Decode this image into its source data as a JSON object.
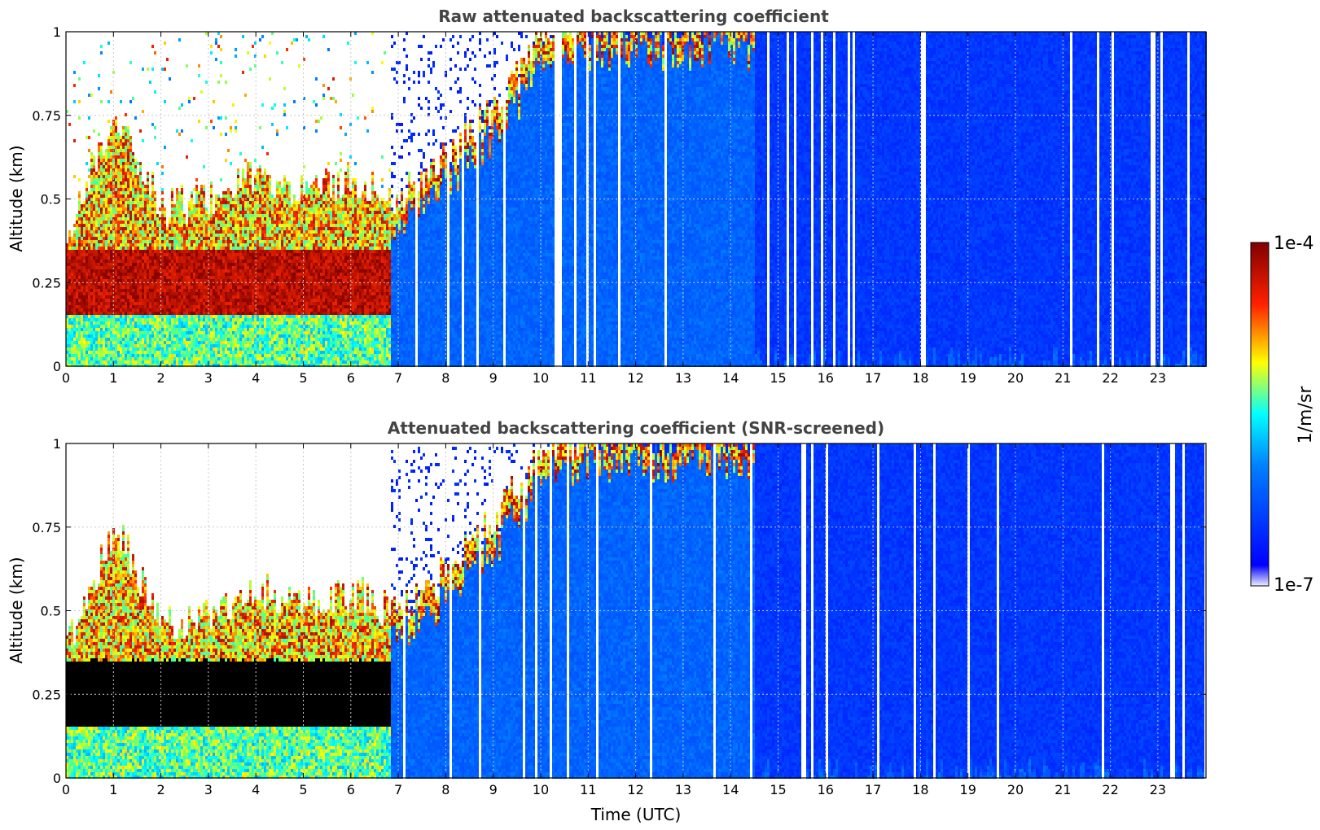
{
  "chart_data": [
    {
      "type": "heatmap",
      "title": "Raw attenuated backscattering coefficient",
      "xlabel": "",
      "ylabel": "Altitude (km)",
      "xlim": [
        0,
        24
      ],
      "ylim": [
        0,
        1
      ],
      "x_ticks": [
        "0",
        "1",
        "2",
        "3",
        "4",
        "5",
        "6",
        "7",
        "8",
        "9",
        "10",
        "11",
        "12",
        "13",
        "14",
        "15",
        "16",
        "17",
        "18",
        "19",
        "20",
        "21",
        "22",
        "23"
      ],
      "y_ticks": [
        "0",
        "0.25",
        "0.5",
        "0.75",
        "1"
      ],
      "grid": true,
      "colorscale": "jet",
      "screened": false,
      "features": {
        "layer_top_km_by_hour": [
          0.38,
          0.75,
          0.45,
          0.48,
          0.55,
          0.5,
          0.55,
          0.48,
          0.6,
          0.75,
          0.95,
          1.0,
          1.0,
          1.0,
          1.0
        ],
        "layer_base_km": 0.15,
        "dense_core_km": [
          0.18,
          0.35
        ],
        "layer_end_hour": 14.5,
        "background_level": "low (blue)"
      }
    },
    {
      "type": "heatmap",
      "title": "Attenuated backscattering coefficient (SNR-screened)",
      "xlabel": "Time (UTC)",
      "ylabel": "Altitude (km)",
      "xlim": [
        0,
        24
      ],
      "ylim": [
        0,
        1
      ],
      "x_ticks": [
        "0",
        "1",
        "2",
        "3",
        "4",
        "5",
        "6",
        "7",
        "8",
        "9",
        "10",
        "11",
        "12",
        "13",
        "14",
        "15",
        "16",
        "17",
        "18",
        "19",
        "20",
        "21",
        "22",
        "23"
      ],
      "y_ticks": [
        "0",
        "0.25",
        "0.5",
        "0.75",
        "1"
      ],
      "grid": true,
      "colorscale": "jet",
      "screened": true,
      "features": {
        "masked_color": "#000000",
        "masked_region_km": [
          0.15,
          0.35
        ],
        "layer_end_hour": 14.5
      }
    }
  ],
  "colorbar": {
    "label": "1/m/sr",
    "max_label": "1e-4",
    "min_label": "1e-7",
    "scale": "log",
    "colors": [
      "#eeeeff",
      "#0000ff",
      "#00ffff",
      "#ffff00",
      "#ff0000",
      "#800000"
    ]
  }
}
